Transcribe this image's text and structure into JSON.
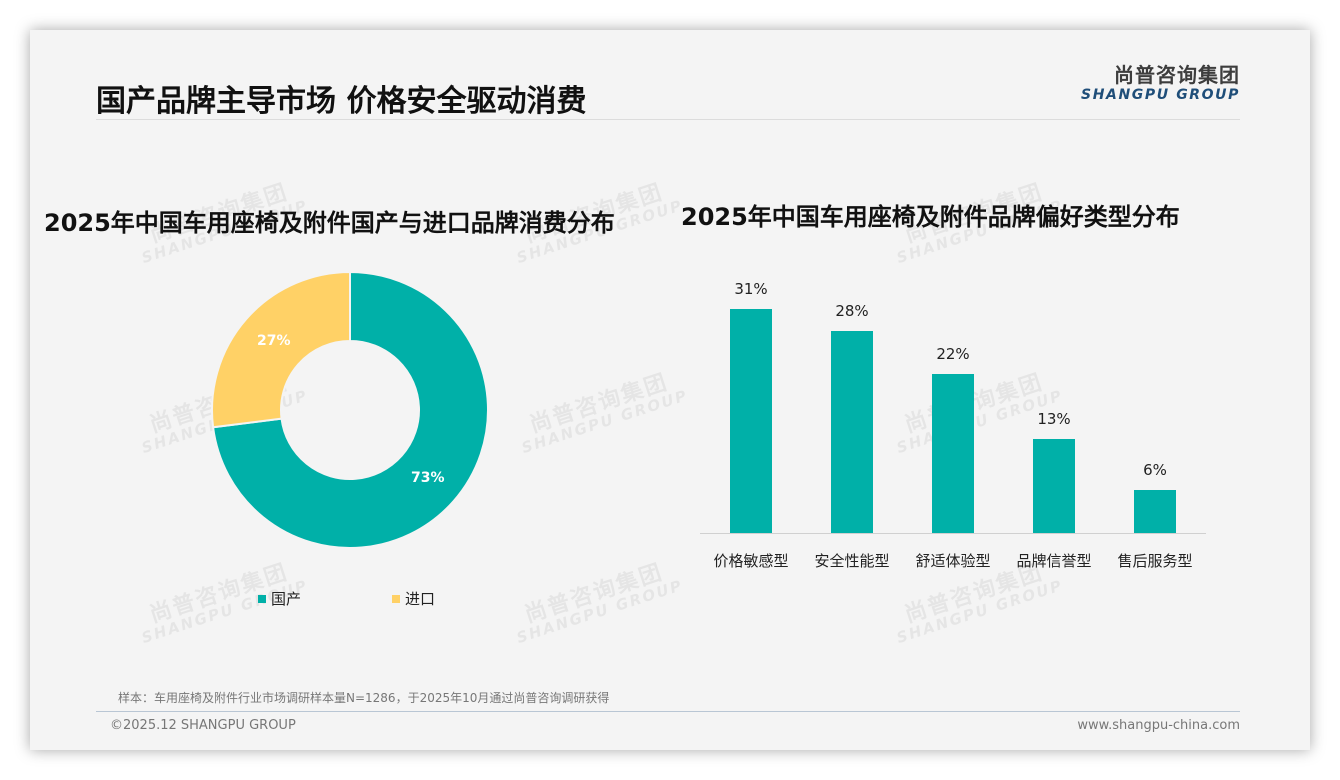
{
  "header": {
    "title": "国产品牌主导市场 价格安全驱动消费",
    "logo_cn": "尚普咨询集团",
    "logo_en": "SHANGPU GROUP"
  },
  "watermark": {
    "cn": "尚普咨询集团",
    "en": "SHANGPU GROUP"
  },
  "colors": {
    "teal": "#00b0a8",
    "yellow": "#ffd166",
    "logo_blue": "#1f4e79"
  },
  "chart_data": [
    {
      "type": "pie",
      "title": "2025年中国车用座椅及附件国产与进口品牌消费分布",
      "donut": true,
      "categories": [
        "国产",
        "进口"
      ],
      "values": [
        73,
        27
      ],
      "labels": [
        "73%",
        "27%"
      ],
      "colors": [
        "#00b0a8",
        "#ffd166"
      ],
      "legend_position": "bottom"
    },
    {
      "type": "bar",
      "title": "2025年中国车用座椅及附件品牌偏好类型分布",
      "categories": [
        "价格敏感型",
        "安全性能型",
        "舒适体验型",
        "品牌信誉型",
        "售后服务型"
      ],
      "values": [
        31,
        28,
        22,
        13,
        6
      ],
      "labels": [
        "31%",
        "28%",
        "22%",
        "13%",
        "6%"
      ],
      "xlabel": "",
      "ylabel": "",
      "ylim": [
        0,
        35
      ],
      "grid": false,
      "color": "#00b0a8"
    }
  ],
  "footer": {
    "note": "样本：车用座椅及附件行业市场调研样本量N=1286，于2025年10月通过尚普咨询调研获得",
    "copyright": "©2025.12 SHANGPU GROUP",
    "website": "www.shangpu-china.com"
  }
}
